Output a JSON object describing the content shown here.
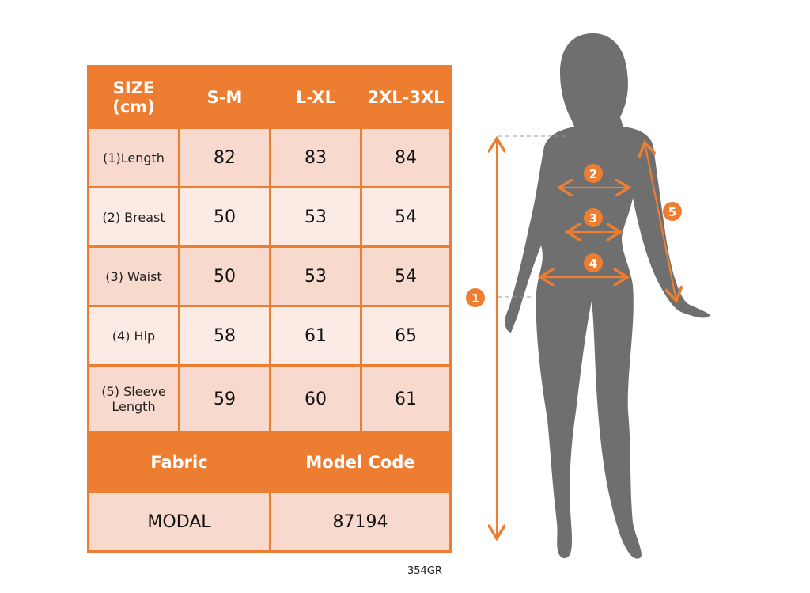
{
  "table": {
    "headers": [
      "SIZE (cm)",
      "S-M",
      "L-XL",
      "2XL-3XL"
    ],
    "rows": [
      {
        "label": "(1)Length",
        "values": [
          "82",
          "83",
          "84"
        ]
      },
      {
        "label": "(2) Breast",
        "values": [
          "50",
          "53",
          "54"
        ]
      },
      {
        "label": "(3) Waist",
        "values": [
          "50",
          "53",
          "54"
        ]
      },
      {
        "label": "(4) Hip",
        "values": [
          "58",
          "61",
          "65"
        ]
      },
      {
        "label": "(5) Sleeve Length",
        "values": [
          "59",
          "60",
          "61"
        ]
      }
    ],
    "fabric_header": "Fabric",
    "model_header": "Model Code",
    "fabric": "MODAL",
    "model_code": "87194"
  },
  "figure": {
    "markers": [
      "1",
      "2",
      "3",
      "4",
      "5"
    ]
  },
  "footer_code": "354GR",
  "colors": {
    "accent": "#ED7D31",
    "silhouette": "#6F6F6F",
    "row_dark": "#F8D9CE",
    "row_light": "#FCEBE5"
  }
}
